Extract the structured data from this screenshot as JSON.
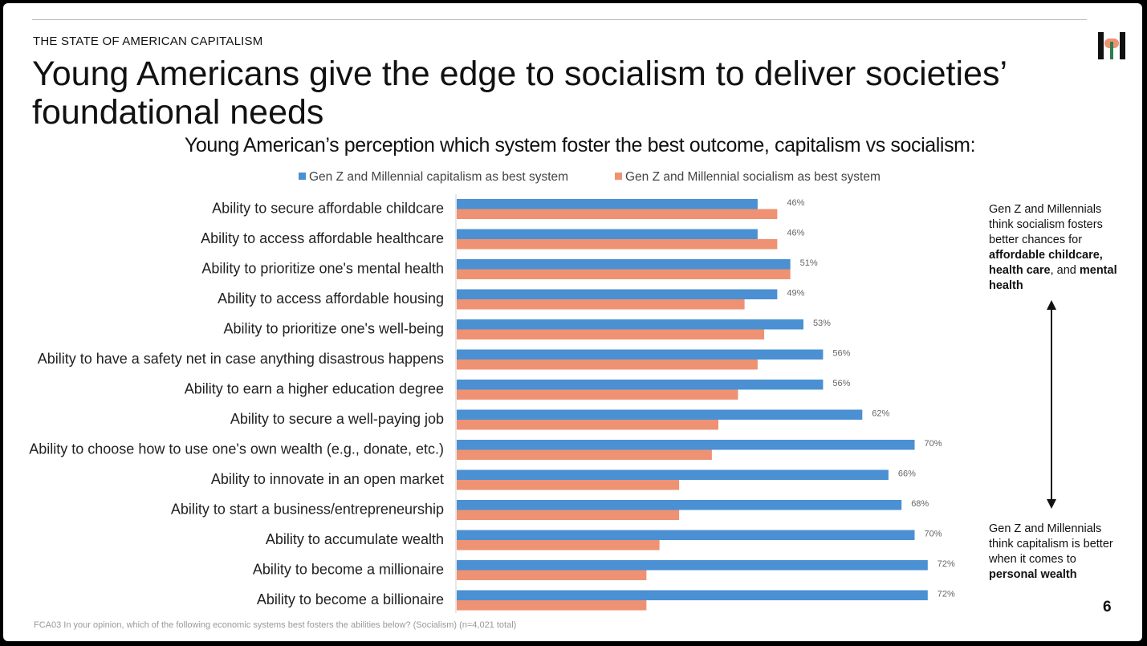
{
  "header": {
    "section_label": "THE STATE OF AMERICAN CAPITALISM",
    "title": "Young Americans give the edge to socialism to deliver societies’ foundational needs",
    "page_number": "6"
  },
  "colors": {
    "capitalism": "#4a90d2",
    "socialism": "#ee9273"
  },
  "annotations": {
    "top_note": [
      "Gen Z and Millennials think socialism fosters better chances for ",
      "affordable childcare, health care",
      ", and ",
      "mental health"
    ],
    "bottom_note": [
      "Gen Z and Millennials think capitalism is better when it comes to ",
      "personal wealth"
    ]
  },
  "footnote": "FCA03 In your opinion, which of the following economic systems best fosters the abilities below? (Socialism) (n=4,021 total)",
  "chart_data": {
    "type": "bar",
    "orientation": "horizontal",
    "title": "Young American’s perception which system foster the best outcome, capitalism vs socialism:",
    "xlim": [
      0,
      100
    ],
    "categories": [
      "Ability to secure affordable childcare",
      "Ability to access affordable healthcare",
      "Ability to prioritize one's mental health",
      "Ability to access affordable housing",
      "Ability to prioritize one's well-being",
      "Ability to have a safety net in case anything disastrous happens",
      "Ability to earn a higher education degree",
      "Ability to secure a well-paying job",
      "Ability to choose how to use one's own wealth (e.g., donate, etc.)",
      "Ability to innovate in an open market",
      "Ability to start a business/entrepreneurship",
      "Ability to accumulate wealth",
      "Ability to become a millionaire",
      "Ability to become a billionaire"
    ],
    "series": [
      {
        "name": "Gen Z and Millennial capitalism as best system",
        "values": [
          46,
          46,
          51,
          49,
          53,
          56,
          56,
          62,
          70,
          66,
          68,
          70,
          72,
          72
        ],
        "labels": [
          "46%",
          "46%",
          "51%",
          "49%",
          "53%",
          "56%",
          "56%",
          "62%",
          "70%",
          "66%",
          "68%",
          "70%",
          "72%",
          "72%"
        ]
      },
      {
        "name": "Gen Z and Millennial socialism as best system",
        "values": [
          49,
          49,
          51,
          44,
          47,
          46,
          43,
          40,
          39,
          34,
          34,
          31,
          29,
          29
        ]
      }
    ]
  }
}
